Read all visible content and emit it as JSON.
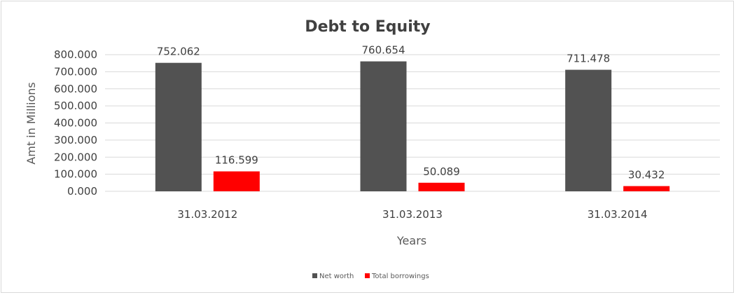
{
  "chart_data": {
    "type": "bar",
    "title": "Debt to Equity",
    "xlabel": "Years",
    "ylabel": "Amt in Millions",
    "categories": [
      "31.03.2012",
      "31.03.2013",
      "31.03.2014"
    ],
    "series": [
      {
        "name": "Net worth",
        "values": [
          752.062,
          760.654,
          711.478
        ],
        "labels": [
          "752.062",
          "760.654",
          "711.478"
        ],
        "color": "#525252"
      },
      {
        "name": "Total borrowings",
        "values": [
          116.599,
          50.089,
          30.432
        ],
        "labels": [
          "116.599",
          "50.089",
          "30.432"
        ],
        "color": "#ff0000"
      }
    ],
    "ylim": [
      0,
      800
    ],
    "yticks": [
      "0.000",
      "100.000",
      "200.000",
      "300.000",
      "400.000",
      "500.000",
      "600.000",
      "700.000",
      "800.000"
    ],
    "grid": true,
    "legend": "bottom"
  }
}
